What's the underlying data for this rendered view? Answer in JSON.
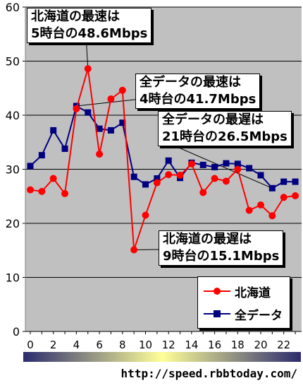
{
  "chart_data": {
    "type": "line",
    "x": [
      0,
      1,
      2,
      3,
      4,
      5,
      6,
      7,
      8,
      9,
      10,
      11,
      12,
      13,
      14,
      15,
      16,
      17,
      18,
      19,
      20,
      21,
      22,
      23
    ],
    "xticks": [
      "0",
      "2",
      "4",
      "6",
      "8",
      "10",
      "12",
      "14",
      "16",
      "18",
      "20",
      "22"
    ],
    "yticks": [
      "0",
      "10",
      "20",
      "30",
      "40",
      "50",
      "60"
    ],
    "ylim": [
      0,
      60
    ],
    "xlim": [
      0,
      23
    ],
    "grid": "horizontal",
    "legend_position": "bottom-right",
    "series": [
      {
        "name": "北海道",
        "color": "#ff0000",
        "marker": "circle",
        "values": [
          26.2,
          25.9,
          28.3,
          25.5,
          41.2,
          48.6,
          32.8,
          43.0,
          44.6,
          15.1,
          21.5,
          27.5,
          29.0,
          28.9,
          31.0,
          25.7,
          28.3,
          27.8,
          30.0,
          22.4,
          23.4,
          21.4,
          24.8,
          25.1
        ]
      },
      {
        "name": "全データ",
        "color": "#000080",
        "marker": "square",
        "values": [
          30.6,
          32.6,
          37.2,
          33.8,
          41.7,
          40.5,
          37.5,
          37.2,
          38.6,
          28.6,
          27.2,
          28.3,
          31.6,
          28.4,
          31.2,
          30.8,
          30.4,
          31.1,
          31.0,
          30.2,
          28.9,
          26.5,
          27.7,
          27.7
        ]
      }
    ],
    "annotations": [
      {
        "lines": [
          "北海道の最速は",
          "5時台の48.6Mbps"
        ],
        "series": 0,
        "x": 5
      },
      {
        "lines": [
          "全データの最速は",
          "4時台の41.7Mbps"
        ],
        "series": 1,
        "x": 4
      },
      {
        "lines": [
          "全データの最遅は",
          "21時台の26.5Mbps"
        ],
        "series": 1,
        "x": 21
      },
      {
        "lines": [
          "北海道の最遅は",
          "9時台の15.1Mbps"
        ],
        "series": 0,
        "x": 9
      }
    ],
    "colorbar_gradient": [
      "#2b2b6e",
      "#ffff99",
      "#2b2b6e"
    ]
  },
  "source_url": "http://speed.rbbtoday.com/"
}
